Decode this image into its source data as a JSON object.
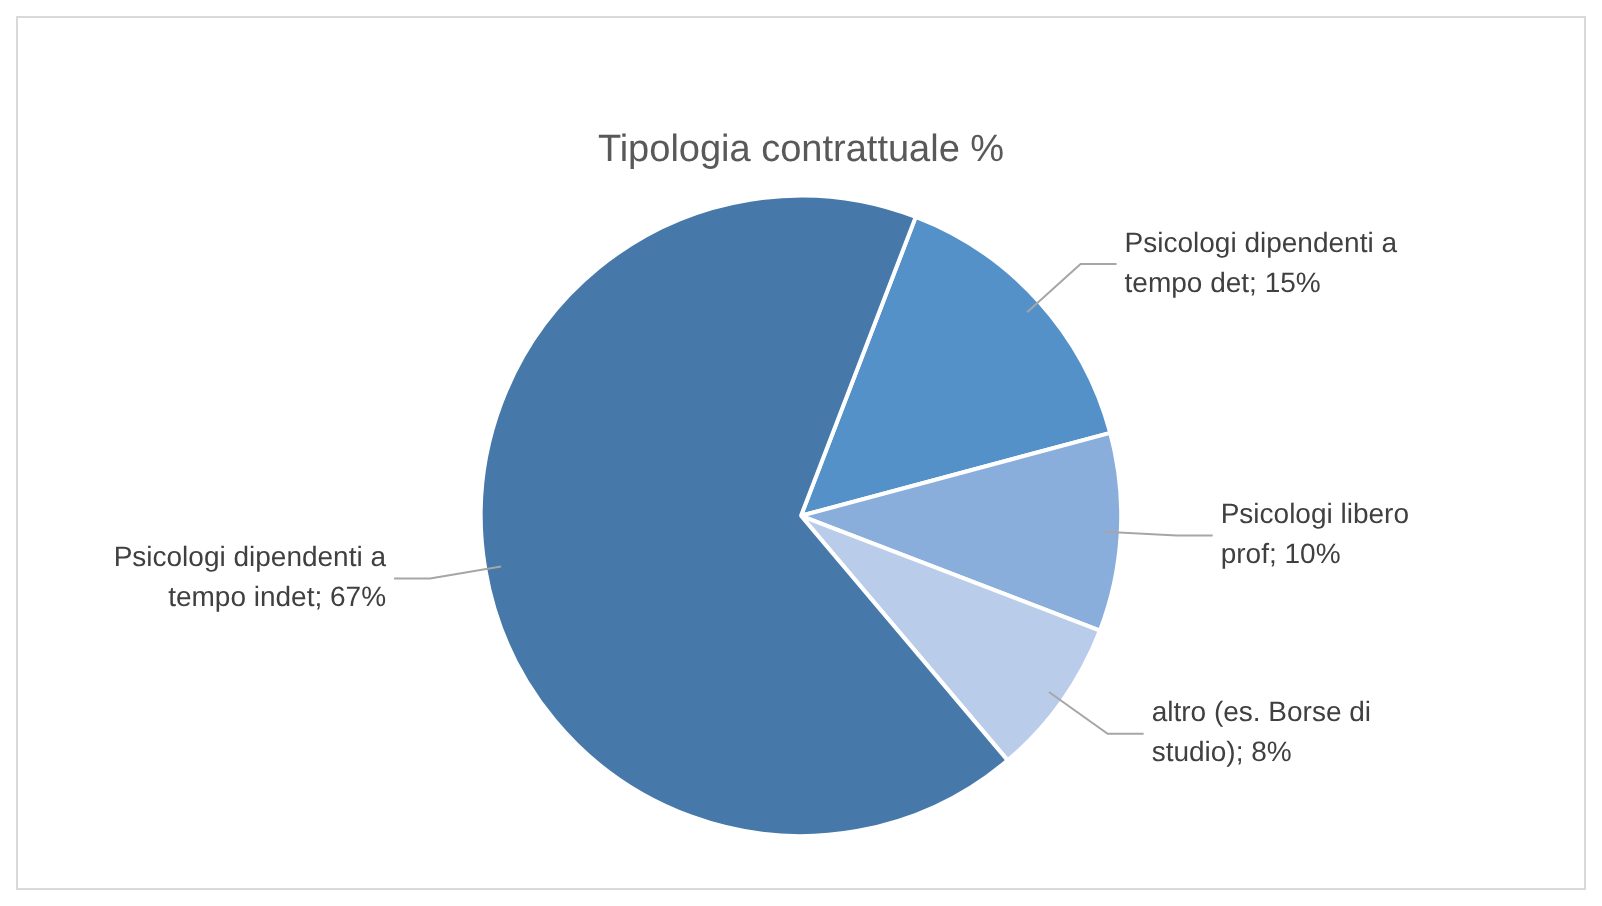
{
  "chart_data": {
    "type": "pie",
    "title": "Tipologia contrattuale %",
    "categories": [
      "Psicologi dipendenti a tempo det",
      "Psicologi libero prof",
      "altro (es. Borse di studio)",
      "Psicologi dipendenti a tempo indet"
    ],
    "values": [
      15,
      10,
      8,
      67
    ],
    "value_labels": [
      "15%",
      "10%",
      "8%",
      "67%"
    ],
    "colors": [
      "#5591c9",
      "#8aaedb",
      "#b9cce9",
      "#4679aa"
    ],
    "legend": false
  }
}
